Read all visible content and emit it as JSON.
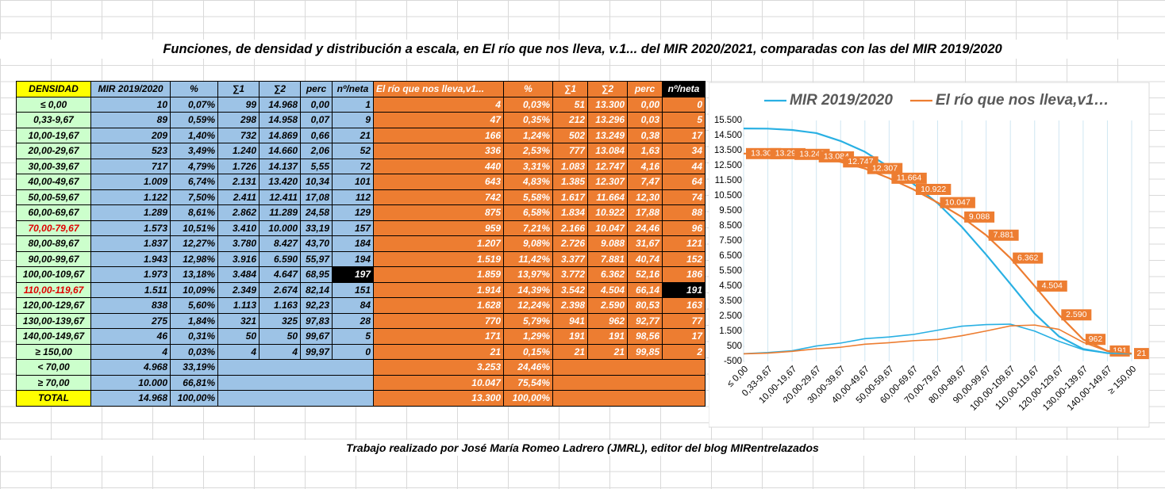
{
  "title": "Funciones, de densidad y distribución a escala,  en El río que nos lleva, v.1... del MIR 2020/2021, comparadas con las del MIR 2019/2020",
  "footer": "Trabajo realizado por José María Romeo Ladrero (JMRL), editor del blog MIRentrelazados",
  "table": {
    "header": [
      "DENSIDAD",
      "MIR 2019/2020",
      "%",
      "∑1",
      "∑2",
      "perc",
      "nº/neta",
      "El río que nos lleva,v1...",
      "%",
      "∑1",
      "∑2",
      "perc",
      "nº/neta"
    ],
    "rows": [
      [
        "≤ 0,00",
        "10",
        "0,07%",
        "99",
        "14.968",
        "0,00",
        "1",
        "4",
        "0,03%",
        "51",
        "13.300",
        "0,00",
        "0"
      ],
      [
        "0,33-9,67",
        "89",
        "0,59%",
        "298",
        "14.958",
        "0,07",
        "9",
        "47",
        "0,35%",
        "212",
        "13.296",
        "0,03",
        "5"
      ],
      [
        "10,00-19,67",
        "209",
        "1,40%",
        "732",
        "14.869",
        "0,66",
        "21",
        "166",
        "1,24%",
        "502",
        "13.249",
        "0,38",
        "17"
      ],
      [
        "20,00-29,67",
        "523",
        "3,49%",
        "1.240",
        "14.660",
        "2,06",
        "52",
        "336",
        "2,53%",
        "777",
        "13.084",
        "1,63",
        "34"
      ],
      [
        "30,00-39,67",
        "717",
        "4,79%",
        "1.726",
        "14.137",
        "5,55",
        "72",
        "440",
        "3,31%",
        "1.083",
        "12.747",
        "4,16",
        "44"
      ],
      [
        "40,00-49,67",
        "1.009",
        "6,74%",
        "2.131",
        "13.420",
        "10,34",
        "101",
        "643",
        "4,83%",
        "1.385",
        "12.307",
        "7,47",
        "64"
      ],
      [
        "50,00-59,67",
        "1.122",
        "7,50%",
        "2.411",
        "12.411",
        "17,08",
        "112",
        "742",
        "5,58%",
        "1.617",
        "11.664",
        "12,30",
        "74"
      ],
      [
        "60,00-69,67",
        "1.289",
        "8,61%",
        "2.862",
        "11.289",
        "24,58",
        "129",
        "875",
        "6,58%",
        "1.834",
        "10.922",
        "17,88",
        "88"
      ],
      [
        "70,00-79,67",
        "1.573",
        "10,51%",
        "3.410",
        "10.000",
        "33,19",
        "157",
        "959",
        "7,21%",
        "2.166",
        "10.047",
        "24,46",
        "96"
      ],
      [
        "80,00-89,67",
        "1.837",
        "12,27%",
        "3.780",
        "8.427",
        "43,70",
        "184",
        "1.207",
        "9,08%",
        "2.726",
        "9.088",
        "31,67",
        "121"
      ],
      [
        "90,00-99,67",
        "1.943",
        "12,98%",
        "3.916",
        "6.590",
        "55,97",
        "194",
        "1.519",
        "11,42%",
        "3.377",
        "7.881",
        "40,74",
        "152"
      ],
      [
        "100,00-109,67",
        "1.973",
        "13,18%",
        "3.484",
        "4.647",
        "68,95",
        "197",
        "1.859",
        "13,97%",
        "3.772",
        "6.362",
        "52,16",
        "186"
      ],
      [
        "110,00-119,67",
        "1.511",
        "10,09%",
        "2.349",
        "2.674",
        "82,14",
        "151",
        "1.914",
        "14,39%",
        "3.542",
        "4.504",
        "66,14",
        "191"
      ],
      [
        "120,00-129,67",
        "838",
        "5,60%",
        "1.113",
        "1.163",
        "92,23",
        "84",
        "1.628",
        "12,24%",
        "2.398",
        "2.590",
        "80,53",
        "163"
      ],
      [
        "130,00-139,67",
        "275",
        "1,84%",
        "321",
        "325",
        "97,83",
        "28",
        "770",
        "5,79%",
        "941",
        "962",
        "92,77",
        "77"
      ],
      [
        "140,00-149,67",
        "46",
        "0,31%",
        "50",
        "50",
        "99,67",
        "5",
        "171",
        "1,29%",
        "191",
        "191",
        "98,56",
        "17"
      ],
      [
        "≥ 150,00",
        "4",
        "0,03%",
        "4",
        "4",
        "99,97",
        "0",
        "21",
        "0,15%",
        "21",
        "21",
        "99,85",
        "2"
      ]
    ],
    "summary": [
      [
        "< 70,00",
        "4.968",
        "33,19%",
        "3.253",
        "24,46%"
      ],
      [
        "≥ 70,00",
        "10.000",
        "66,81%",
        "10.047",
        "75,54%"
      ],
      [
        "TOTAL",
        "14.968",
        "100,00%",
        "13.300",
        "100,00%"
      ]
    ]
  },
  "chart_data": {
    "type": "line",
    "categories": [
      "≤ 0,00",
      "0,33-9,67",
      "10,00-19,67",
      "20,00-29,67",
      "30,00-39,67",
      "40,00-49,67",
      "50,00-59,67",
      "60,00-69,67",
      "70,00-79,67",
      "80,00-89,67",
      "90,00-99,67",
      "100,00-109,67",
      "110,00-119,67",
      "120,00-129,67",
      "130,00-139,67",
      "140,00-149,67",
      "≥ 150,00"
    ],
    "series": [
      {
        "name": "MIR 2019/2020",
        "color": "#29b0e3",
        "values": [
          14968,
          14958,
          14869,
          14660,
          14137,
          13420,
          12411,
          11289,
          10000,
          8427,
          6590,
          4647,
          2674,
          1163,
          325,
          50,
          4
        ]
      },
      {
        "name": "El río que nos lleva,v1…",
        "color": "#ed7d31",
        "values": [
          13300,
          13296,
          13249,
          13084,
          12747,
          12307,
          11664,
          10922,
          10047,
          9088,
          7881,
          6362,
          4504,
          2590,
          962,
          191,
          21
        ],
        "value_labels": [
          "13.300",
          "13.296",
          "13.249",
          "13.084",
          "12.747",
          "12.307",
          "11.664",
          "10.922",
          "10.047",
          "9.088",
          "7.881",
          "6.362",
          "4.504",
          "2.590",
          "962",
          "191",
          "21"
        ]
      },
      {
        "color": "#29b0e3",
        "values": [
          10,
          89,
          209,
          523,
          717,
          1009,
          1122,
          1289,
          1573,
          1837,
          1943,
          1973,
          1511,
          838,
          275,
          46,
          4
        ]
      },
      {
        "color": "#ed7d31",
        "values": [
          4,
          47,
          166,
          336,
          440,
          643,
          742,
          875,
          959,
          1207,
          1519,
          1859,
          1914,
          1628,
          770,
          171,
          21
        ]
      }
    ],
    "ylim": [
      -500,
      15500
    ],
    "yticks": [
      -500,
      500,
      {
        "value": 1500,
        "label": "1.500"
      },
      {
        "value": 2500,
        "label": "2.500"
      },
      {
        "value": 3500,
        "label": "3.500"
      },
      {
        "value": 4500,
        "label": "4.500"
      },
      {
        "value": 5500,
        "label": "5.500"
      },
      {
        "value": 6500,
        "label": "6.500"
      },
      {
        "value": 7500,
        "label": "7.500"
      },
      {
        "value": 8500,
        "label": "8.500"
      },
      {
        "value": 9500,
        "label": "9.500"
      },
      {
        "value": 10500,
        "label": "10.500"
      },
      {
        "value": 11500,
        "label": "11.500"
      },
      {
        "value": 12500,
        "label": "12.500"
      },
      {
        "value": 13500,
        "label": "13.500"
      },
      {
        "value": 14500,
        "label": "14.500"
      },
      {
        "value": 15500,
        "label": "15.500"
      }
    ],
    "grid": true,
    "legend": "top"
  }
}
